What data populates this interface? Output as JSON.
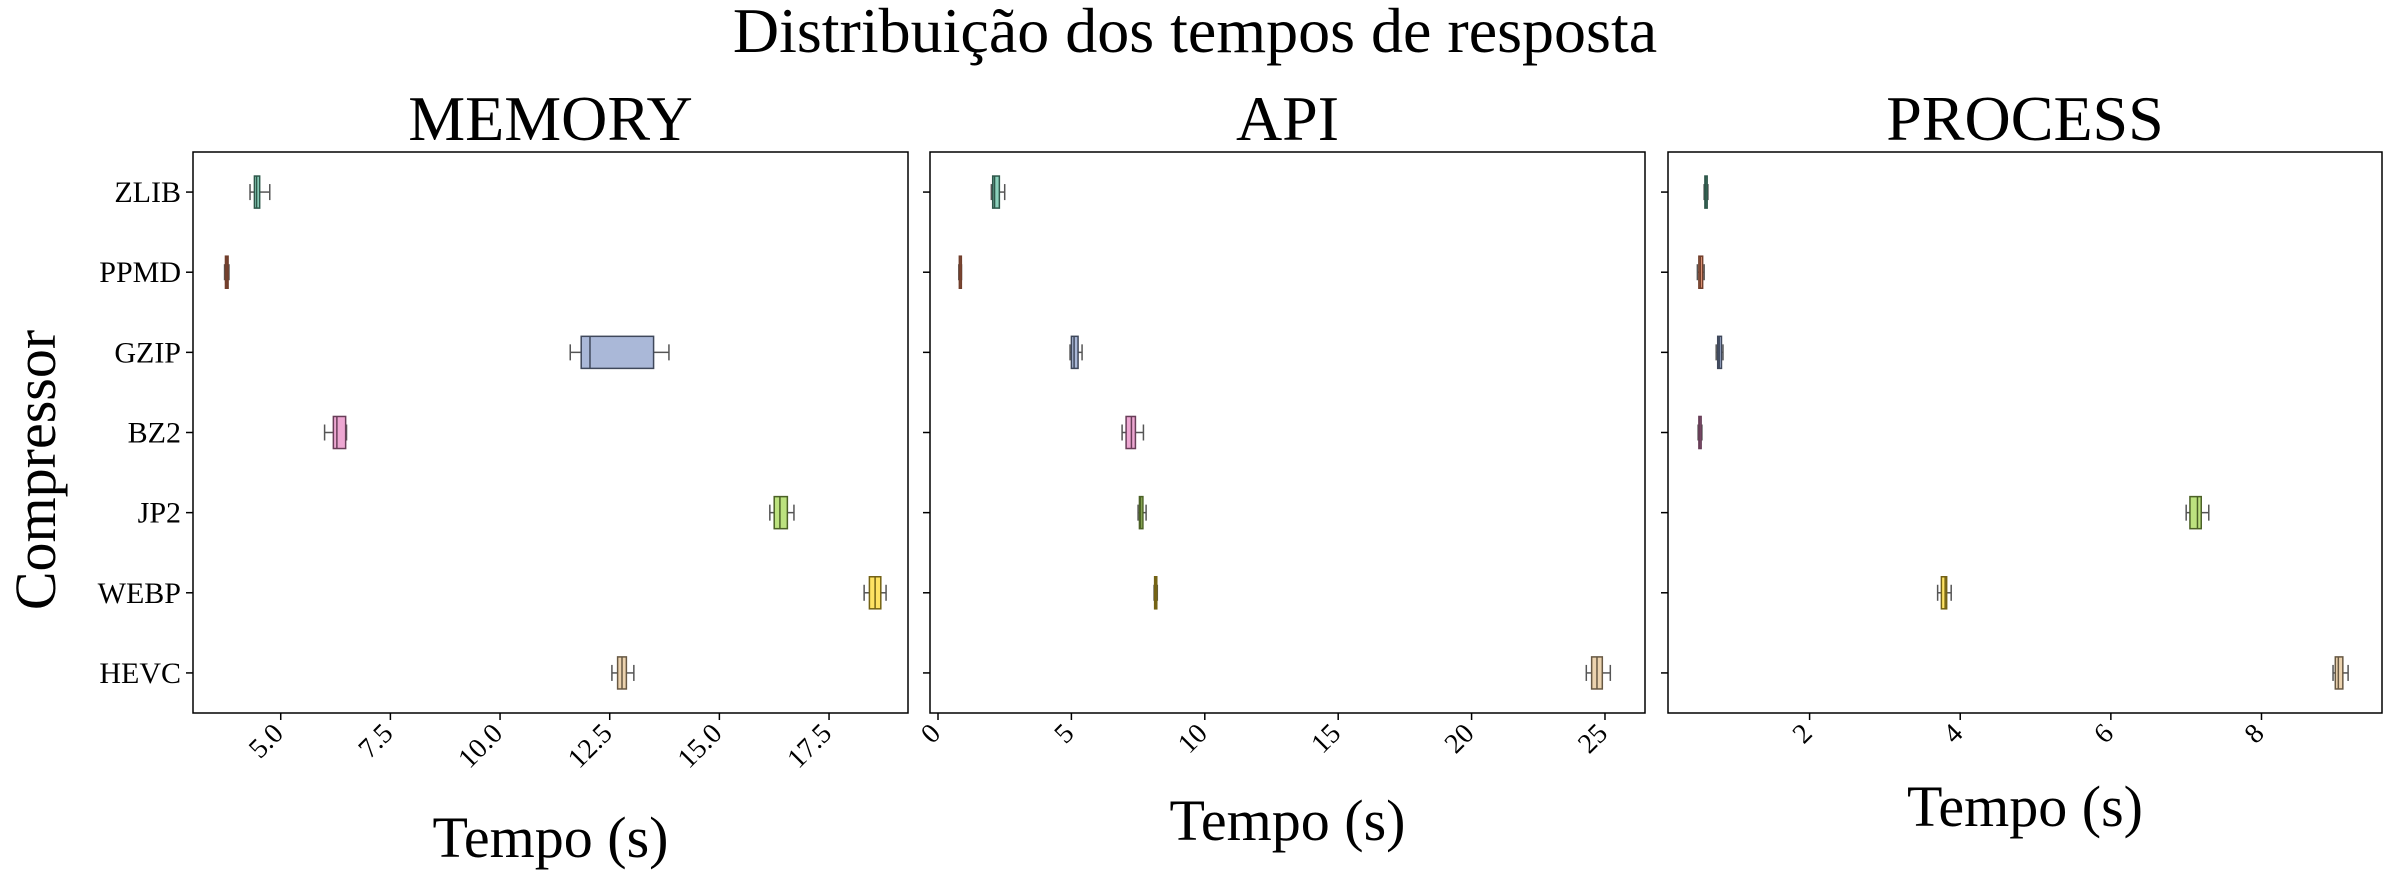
{
  "figure": {
    "suptitle": "Distribuição dos tempos de resposta",
    "ylabel": "Compressor",
    "categories": [
      "ZLIB",
      "PPMD",
      "GZIP",
      "BZ2",
      "JP2",
      "WEBP",
      "HEVC"
    ],
    "colors": [
      "#66c2a5",
      "#fc8d62",
      "#8da0cb",
      "#e78ac3",
      "#a6d854",
      "#ffd92f",
      "#e5c494"
    ],
    "box_fill_alpha": 0.75
  },
  "chart_data": [
    {
      "type": "boxplot",
      "orientation": "horizontal",
      "title": "MEMORY",
      "xlabel": "Tempo (s)",
      "xlim": [
        3.0,
        19.3
      ],
      "xticks": [
        5.0,
        7.5,
        10.0,
        12.5,
        15.0,
        17.5
      ],
      "xtick_labels": [
        "5.0",
        "7.5",
        "10.0",
        "12.5",
        "15.0",
        "17.5"
      ],
      "categories": [
        "ZLIB",
        "PPMD",
        "GZIP",
        "BZ2",
        "JP2",
        "WEBP",
        "HEVC"
      ],
      "boxes": [
        {
          "whislo": 4.3,
          "q1": 4.4,
          "med": 4.45,
          "q3": 4.52,
          "whishi": 4.75
        },
        {
          "whislo": 3.72,
          "q1": 3.74,
          "med": 3.77,
          "q3": 3.8,
          "whishi": 3.82
        },
        {
          "whislo": 11.6,
          "q1": 11.85,
          "med": 12.05,
          "q3": 13.5,
          "whishi": 13.85
        },
        {
          "whislo": 6.0,
          "q1": 6.2,
          "med": 6.28,
          "q3": 6.48,
          "whishi": 6.5
        },
        {
          "whislo": 16.15,
          "q1": 16.25,
          "med": 16.38,
          "q3": 16.55,
          "whishi": 16.7
        },
        {
          "whislo": 18.3,
          "q1": 18.42,
          "med": 18.55,
          "q3": 18.68,
          "whishi": 18.8
        },
        {
          "whislo": 12.55,
          "q1": 12.68,
          "med": 12.78,
          "q3": 12.88,
          "whishi": 13.05
        }
      ]
    },
    {
      "type": "boxplot",
      "orientation": "horizontal",
      "title": "API",
      "xlabel": "Tempo (s)",
      "xlim": [
        -0.3,
        26.5
      ],
      "xticks": [
        0,
        5,
        10,
        15,
        20,
        25
      ],
      "xtick_labels": [
        "0",
        "5",
        "10",
        "15",
        "20",
        "25"
      ],
      "categories": [
        "ZLIB",
        "PPMD",
        "GZIP",
        "BZ2",
        "JP2",
        "WEBP",
        "HEVC"
      ],
      "boxes": [
        {
          "whislo": 2.0,
          "q1": 2.05,
          "med": 2.12,
          "q3": 2.3,
          "whishi": 2.5
        },
        {
          "whislo": 0.78,
          "q1": 0.8,
          "med": 0.82,
          "q3": 0.86,
          "whishi": 0.88
        },
        {
          "whislo": 4.95,
          "q1": 5.0,
          "med": 5.1,
          "q3": 5.25,
          "whishi": 5.4
        },
        {
          "whislo": 6.9,
          "q1": 7.05,
          "med": 7.25,
          "q3": 7.4,
          "whishi": 7.7
        },
        {
          "whislo": 7.5,
          "q1": 7.55,
          "med": 7.6,
          "q3": 7.68,
          "whishi": 7.8
        },
        {
          "whislo": 8.1,
          "q1": 8.12,
          "med": 8.15,
          "q3": 8.2,
          "whishi": 8.22
        },
        {
          "whislo": 24.3,
          "q1": 24.5,
          "med": 24.7,
          "q3": 24.9,
          "whishi": 25.2
        }
      ]
    },
    {
      "type": "boxplot",
      "orientation": "horizontal",
      "title": "PROCESS",
      "xlabel": "Tempo (s)",
      "xlim": [
        0.12,
        9.6
      ],
      "xticks": [
        2,
        4,
        6,
        8
      ],
      "xtick_labels": [
        "2",
        "4",
        "6",
        "8"
      ],
      "categories": [
        "ZLIB",
        "PPMD",
        "GZIP",
        "BZ2",
        "JP2",
        "WEBP",
        "HEVC"
      ],
      "boxes": [
        {
          "whislo": 0.6,
          "q1": 0.61,
          "med": 0.62,
          "q3": 0.64,
          "whishi": 0.65
        },
        {
          "whislo": 0.51,
          "q1": 0.53,
          "med": 0.55,
          "q3": 0.58,
          "whishi": 0.6
        },
        {
          "whislo": 0.76,
          "q1": 0.78,
          "med": 0.8,
          "q3": 0.83,
          "whishi": 0.85
        },
        {
          "whislo": 0.52,
          "q1": 0.53,
          "med": 0.54,
          "q3": 0.56,
          "whishi": 0.57
        },
        {
          "whislo": 7.0,
          "q1": 7.05,
          "med": 7.15,
          "q3": 7.2,
          "whishi": 7.3
        },
        {
          "whislo": 3.7,
          "q1": 3.75,
          "med": 3.8,
          "q3": 3.82,
          "whishi": 3.88
        },
        {
          "whislo": 8.95,
          "q1": 8.98,
          "med": 9.02,
          "q3": 9.08,
          "whishi": 9.15
        }
      ]
    }
  ]
}
